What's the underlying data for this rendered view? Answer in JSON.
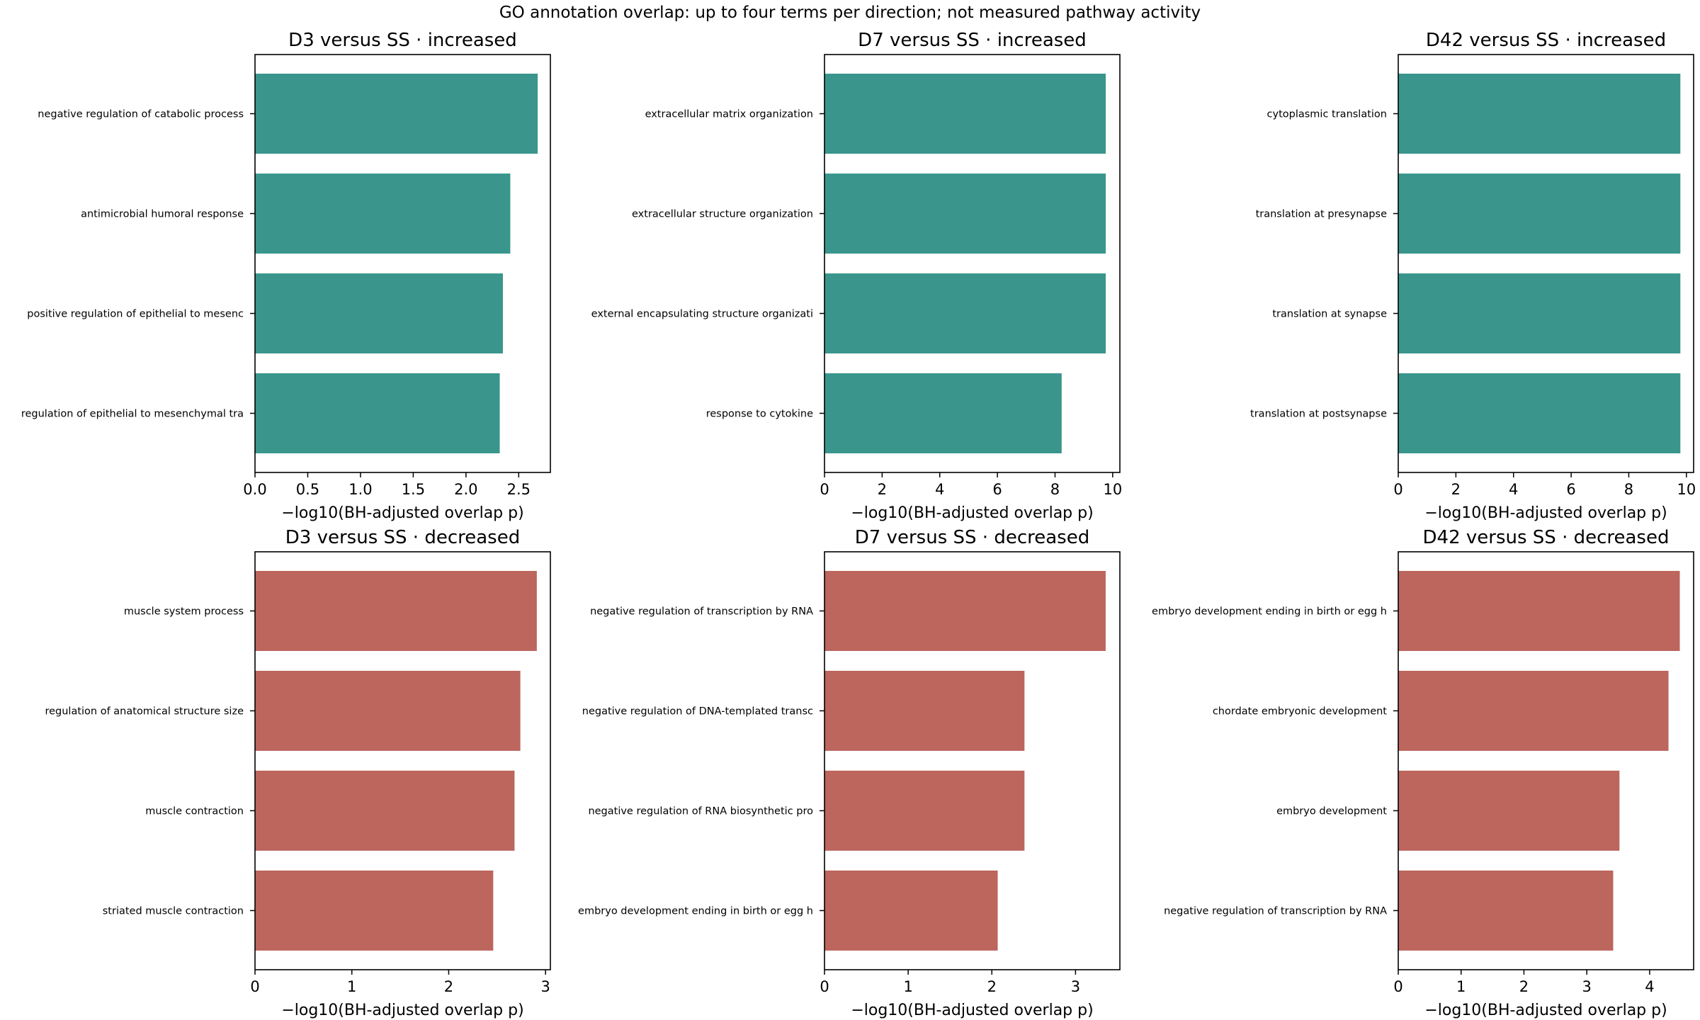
{
  "suptitle": "GO annotation overlap: up to four terms per direction; not measured pathway activity",
  "colors": {
    "increased": "#3a968c",
    "decreased": "#bc665e",
    "axis": "#000000"
  },
  "chart_data": [
    {
      "type": "bar",
      "orientation": "horizontal",
      "title": "D3 versus SS · increased",
      "xlabel": "−log10(BH-adjusted overlap p)",
      "ylabel": "",
      "xlim": [
        0,
        2.8
      ],
      "xticks": [
        "0.0",
        "0.5",
        "1.0",
        "1.5",
        "2.0",
        "2.5"
      ],
      "categories": [
        "negative regulation of catabolic process",
        "antimicrobial humoral response",
        "positive regulation of epithelial to mesenc",
        "regulation of epithelial to mesenchymal tra"
      ],
      "values": [
        2.68,
        2.42,
        2.35,
        2.32
      ],
      "color": "increased"
    },
    {
      "type": "bar",
      "orientation": "horizontal",
      "title": "D7 versus SS · increased",
      "xlabel": "−log10(BH-adjusted overlap p)",
      "ylabel": "",
      "xlim": [
        0,
        10.25
      ],
      "xticks": [
        "0",
        "2",
        "4",
        "6",
        "8",
        "10"
      ],
      "categories": [
        "extracellular matrix organization",
        "extracellular structure organization",
        "external encapsulating structure organizati",
        "response to cytokine"
      ],
      "values": [
        9.76,
        9.76,
        9.76,
        8.23
      ],
      "color": "increased"
    },
    {
      "type": "bar",
      "orientation": "horizontal",
      "title": "D42 versus SS · increased",
      "xlabel": "−log10(BH-adjusted overlap p)",
      "ylabel": "",
      "xlim": [
        0,
        10.25
      ],
      "xticks": [
        "0",
        "2",
        "4",
        "6",
        "8",
        "10"
      ],
      "categories": [
        "cytoplasmic translation",
        "translation at presynapse",
        "translation at synapse",
        "translation at postsynapse"
      ],
      "values": [
        9.79,
        9.79,
        9.79,
        9.79
      ],
      "color": "increased"
    },
    {
      "type": "bar",
      "orientation": "horizontal",
      "title": "D3 versus SS · decreased",
      "xlabel": "−log10(BH-adjusted overlap p)",
      "ylabel": "",
      "xlim": [
        0,
        3.05
      ],
      "xticks": [
        "0",
        "1",
        "2",
        "3"
      ],
      "categories": [
        "muscle system process",
        "regulation of anatomical structure size",
        "muscle contraction",
        "striated muscle contraction"
      ],
      "values": [
        2.91,
        2.74,
        2.68,
        2.46
      ],
      "color": "decreased"
    },
    {
      "type": "bar",
      "orientation": "horizontal",
      "title": "D7 versus SS · decreased",
      "xlabel": "−log10(BH-adjusted overlap p)",
      "ylabel": "",
      "xlim": [
        0,
        3.53
      ],
      "xticks": [
        "0",
        "1",
        "2",
        "3"
      ],
      "categories": [
        "negative regulation of transcription by RNA",
        "negative regulation of DNA-templated transc",
        "negative regulation of RNA biosynthetic pro",
        "embryo development ending in birth or egg h"
      ],
      "values": [
        3.36,
        2.39,
        2.39,
        2.07
      ],
      "color": "decreased"
    },
    {
      "type": "bar",
      "orientation": "horizontal",
      "title": "D42 versus SS · decreased",
      "xlabel": "−log10(BH-adjusted overlap p)",
      "ylabel": "",
      "xlim": [
        0,
        4.7
      ],
      "xticks": [
        "0",
        "1",
        "2",
        "3",
        "4"
      ],
      "categories": [
        "embryo development ending in birth or egg h",
        "chordate embryonic development",
        "embryo development",
        "negative regulation of transcription by RNA"
      ],
      "values": [
        4.48,
        4.3,
        3.52,
        3.42
      ],
      "color": "decreased"
    }
  ]
}
